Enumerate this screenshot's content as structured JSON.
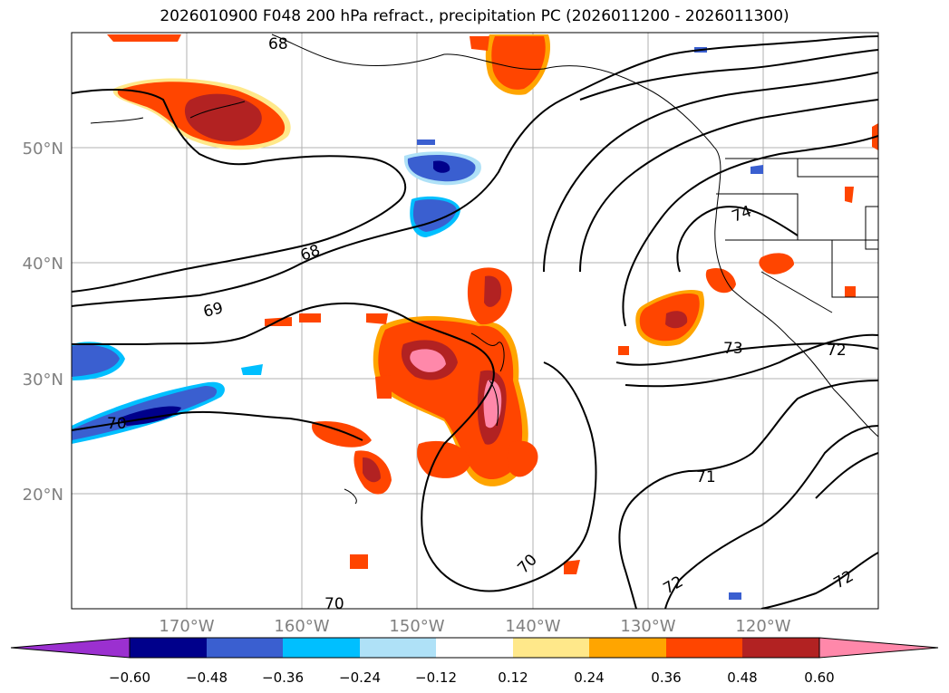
{
  "title": "2026010900 F048 200 hPa refract., precipitation PC (2026011200 - 2026011300)",
  "lat_labels": [
    "50°N",
    "40°N",
    "30°N",
    "20°N"
  ],
  "lon_labels": [
    "170°W",
    "160°W",
    "150°W",
    "140°W",
    "130°W",
    "120°W"
  ],
  "contour_labels": {
    "c68_top": "68",
    "c68": "68",
    "c69": "69",
    "c70_left": "70",
    "c70_mid": "70",
    "c70_bottom": "70",
    "c71": "71",
    "c72_a": "72",
    "c72_b": "72",
    "c72_c": "72",
    "c73": "73",
    "c74": "74"
  },
  "colorbar": {
    "ticks": [
      "−0.60",
      "−0.48",
      "−0.36",
      "−0.24",
      "−0.12",
      "0.12",
      "0.24",
      "0.36",
      "0.48",
      "0.60"
    ],
    "colors": {
      "under": "#9b30d0",
      "bin1": "#00008b",
      "bin2": "#3a5fd0",
      "bin3": "#00bfff",
      "bin4": "#afe1f7",
      "bin5": "#ffffff",
      "bin6": "#ffe88a",
      "bin7": "#ffa500",
      "bin8": "#ff4500",
      "bin9": "#b22222",
      "over": "#ff88aa"
    }
  }
}
